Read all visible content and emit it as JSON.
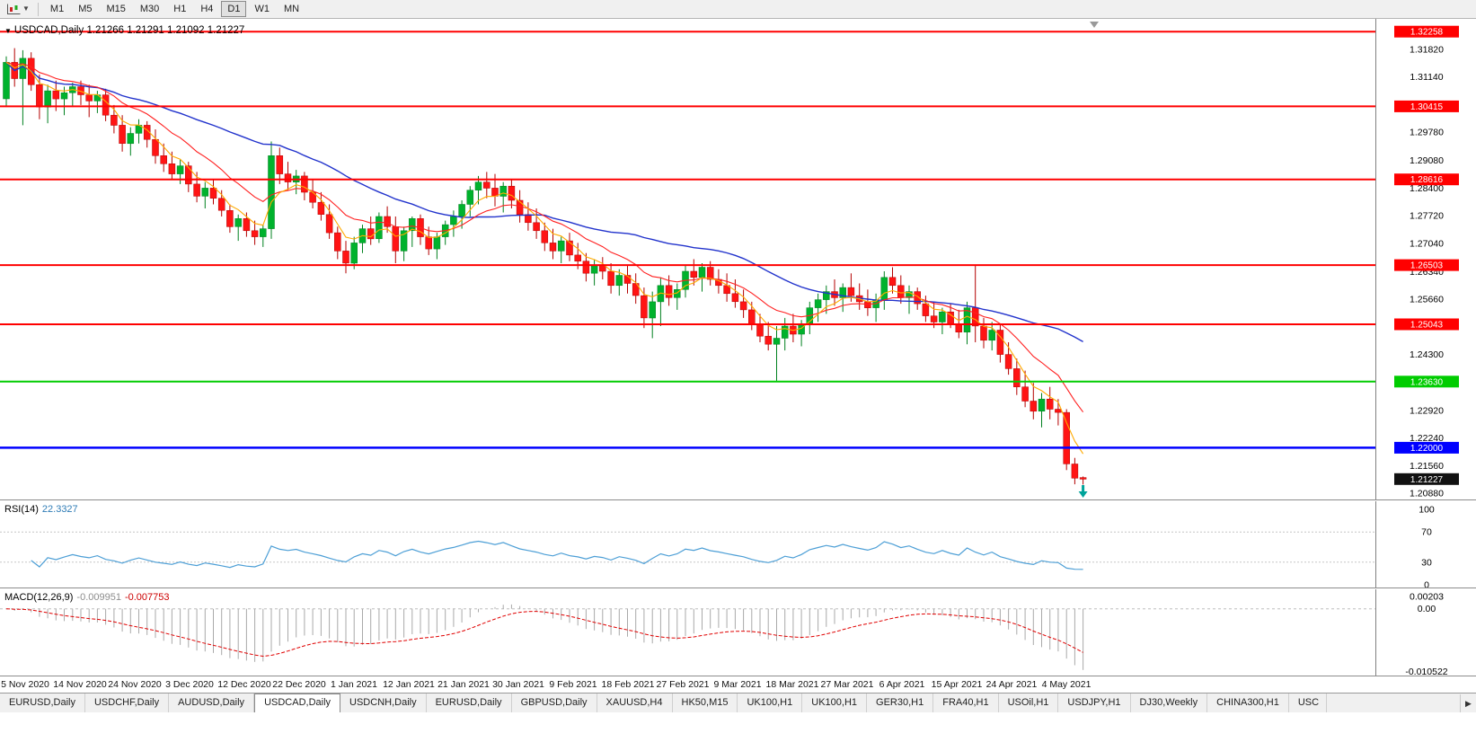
{
  "toolbar": {
    "timeframes": [
      "M1",
      "M5",
      "M15",
      "M30",
      "H1",
      "H4",
      "D1",
      "W1",
      "MN"
    ],
    "active": "D1"
  },
  "chart": {
    "title": "USDCAD,Daily",
    "ohlc": "1.21266 1.21291 1.21092 1.21227"
  },
  "price_axis": {
    "ticks": [
      "1.31820",
      "1.31140",
      "1.30460",
      "1.29780",
      "1.29080",
      "1.28400",
      "1.27720",
      "1.27040",
      "1.26340",
      "1.25660",
      "1.24980",
      "1.24300",
      "1.23620",
      "1.22920",
      "1.22240",
      "1.21560",
      "1.20880"
    ]
  },
  "date_axis": {
    "labels": [
      "5 Nov 2020",
      "14 Nov 2020",
      "24 Nov 2020",
      "3 Dec 2020",
      "12 Dec 2020",
      "22 Dec 2020",
      "1 Jan 2021",
      "12 Jan 2021",
      "21 Jan 2021",
      "30 Jan 2021",
      "9 Feb 2021",
      "18 Feb 2021",
      "27 Feb 2021",
      "9 Mar 2021",
      "18 Mar 2021",
      "27 Mar 2021",
      "6 Apr 2021",
      "15 Apr 2021",
      "24 Apr 2021",
      "4 May 2021"
    ]
  },
  "rsi": {
    "title": "RSI(14)",
    "value": "22.3327",
    "levels": [
      "100",
      "70",
      "30",
      "0"
    ],
    "color": "#4d9fd6"
  },
  "macd": {
    "title": "MACD(12,26,9)",
    "main": "-0.009951",
    "signal": "-0.007753",
    "axis_top": "0.00203",
    "axis_zero": "0.00",
    "axis_bottom": "-0.010522",
    "hist_color": "#a9a9a9",
    "signal_color": "#e00000"
  },
  "tabs": {
    "active_index": 3,
    "items": [
      "EURUSD,Daily",
      "USDCHF,Daily",
      "AUDUSD,Daily",
      "USDCAD,Daily",
      "USDCNH,Daily",
      "EURUSD,Daily",
      "GBPUSD,Daily",
      "XAUUSD,H4",
      "HK50,M15",
      "UK100,H1",
      "UK100,H1",
      "GER30,H1",
      "FRA40,H1",
      "USOil,H1",
      "USDJPY,H1",
      "DJ30,Weekly",
      "CHINA300,H1",
      "USC"
    ],
    "scroll_right_icon": "▶"
  },
  "current_price_badge": "1.21227",
  "chart_data": {
    "type": "candlestick",
    "symbol": "USDCAD",
    "timeframe": "Daily",
    "title": "USDCAD,Daily",
    "current": {
      "open": 1.21266,
      "high": 1.21291,
      "low": 1.21092,
      "close": 1.21227
    },
    "colors": {
      "up": "#00b22d",
      "up_dark": "#00801f",
      "down": "#ff1414",
      "down_dark": "#b30000",
      "ma_fast": "#ffaa00",
      "ma_mid": "#ff2020",
      "ma_slow": "#2233cc",
      "arrow": "#00a39a"
    },
    "hlines": [
      {
        "price": 1.32258,
        "color": "#ff0000",
        "width": 2,
        "badge": "1.32258",
        "name": "resistance-line-132258"
      },
      {
        "price": 1.30415,
        "color": "#ff0000",
        "width": 2,
        "badge": "1.30415",
        "name": "resistance-line-130415"
      },
      {
        "price": 1.28616,
        "color": "#ff0000",
        "width": 2,
        "badge": "1.28616",
        "name": "resistance-line-128616"
      },
      {
        "price": 1.26503,
        "color": "#ff0000",
        "width": 2,
        "badge": "1.26503",
        "name": "resistance-line-126503"
      },
      {
        "price": 1.25043,
        "color": "#ff0000",
        "width": 2,
        "badge": "1.25043",
        "name": "resistance-line-125043"
      },
      {
        "price": 1.2363,
        "color": "#00cc00",
        "width": 2,
        "badge": "1.23630",
        "name": "support-line-green"
      },
      {
        "price": 1.22,
        "color": "#0000ff",
        "width": 2.5,
        "badge": "1.22000",
        "name": "support-line-blue"
      }
    ],
    "candles": [
      [
        1.306,
        1.3165,
        1.304,
        1.315
      ],
      [
        1.315,
        1.3185,
        1.309,
        1.311
      ],
      [
        1.311,
        1.318,
        1.2995,
        1.316
      ],
      [
        1.316,
        1.3175,
        1.308,
        1.3095
      ],
      [
        1.3095,
        1.312,
        1.301,
        1.304
      ],
      [
        1.304,
        1.3095,
        1.3,
        1.308
      ],
      [
        1.308,
        1.3105,
        1.303,
        1.306
      ],
      [
        1.306,
        1.309,
        1.302,
        1.3075
      ],
      [
        1.3075,
        1.31,
        1.304,
        1.309
      ],
      [
        1.309,
        1.3105,
        1.3045,
        1.307
      ],
      [
        1.307,
        1.3095,
        1.3015,
        1.3055
      ],
      [
        1.3055,
        1.308,
        1.3025,
        1.307
      ],
      [
        1.307,
        1.3085,
        1.3005,
        1.302
      ],
      [
        1.302,
        1.3045,
        1.2975,
        1.2995
      ],
      [
        1.2995,
        1.302,
        1.293,
        1.295
      ],
      [
        1.295,
        1.299,
        1.292,
        1.2975
      ],
      [
        1.2975,
        1.301,
        1.295,
        1.2995
      ],
      [
        1.2995,
        1.3005,
        1.294,
        1.296
      ],
      [
        1.296,
        1.2985,
        1.29,
        1.292
      ],
      [
        1.292,
        1.295,
        1.288,
        1.29
      ],
      [
        1.29,
        1.293,
        1.286,
        1.2875
      ],
      [
        1.2875,
        1.291,
        1.285,
        1.2895
      ],
      [
        1.2895,
        1.2905,
        1.283,
        1.285
      ],
      [
        1.285,
        1.288,
        1.2805,
        1.282
      ],
      [
        1.282,
        1.2855,
        1.279,
        1.284
      ],
      [
        1.284,
        1.286,
        1.28,
        1.2815
      ],
      [
        1.2815,
        1.2835,
        1.277,
        1.2785
      ],
      [
        1.2785,
        1.28,
        1.273,
        1.2745
      ],
      [
        1.2745,
        1.2775,
        1.271,
        1.2765
      ],
      [
        1.2765,
        1.278,
        1.272,
        1.2735
      ],
      [
        1.2735,
        1.276,
        1.27,
        1.272
      ],
      [
        1.272,
        1.275,
        1.2695,
        1.274
      ],
      [
        1.274,
        1.2955,
        1.2715,
        1.292
      ],
      [
        1.292,
        1.294,
        1.285,
        1.2875
      ],
      [
        1.2875,
        1.2905,
        1.2835,
        1.2855
      ],
      [
        1.2855,
        1.2885,
        1.2825,
        1.287
      ],
      [
        1.287,
        1.288,
        1.281,
        1.283
      ],
      [
        1.283,
        1.286,
        1.279,
        1.2805
      ],
      [
        1.2805,
        1.283,
        1.276,
        1.2775
      ],
      [
        1.2775,
        1.28,
        1.2715,
        1.273
      ],
      [
        1.273,
        1.2745,
        1.2665,
        1.2685
      ],
      [
        1.2685,
        1.271,
        1.263,
        1.2655
      ],
      [
        1.2655,
        1.272,
        1.264,
        1.2705
      ],
      [
        1.2705,
        1.275,
        1.268,
        1.274
      ],
      [
        1.274,
        1.277,
        1.27,
        1.2715
      ],
      [
        1.2715,
        1.278,
        1.2705,
        1.277
      ],
      [
        1.277,
        1.2795,
        1.273,
        1.2745
      ],
      [
        1.2745,
        1.277,
        1.2655,
        1.2685
      ],
      [
        1.2685,
        1.2745,
        1.266,
        1.2735
      ],
      [
        1.2735,
        1.277,
        1.2695,
        1.2765
      ],
      [
        1.2765,
        1.2775,
        1.27,
        1.272
      ],
      [
        1.272,
        1.2745,
        1.2675,
        1.269
      ],
      [
        1.269,
        1.273,
        1.2665,
        1.272
      ],
      [
        1.272,
        1.276,
        1.27,
        1.275
      ],
      [
        1.275,
        1.2785,
        1.272,
        1.277
      ],
      [
        1.277,
        1.281,
        1.274,
        1.28
      ],
      [
        1.28,
        1.2845,
        1.277,
        1.2835
      ],
      [
        1.2835,
        1.287,
        1.28,
        1.2855
      ],
      [
        1.2855,
        1.288,
        1.2815,
        1.284
      ],
      [
        1.284,
        1.2875,
        1.2795,
        1.282
      ],
      [
        1.282,
        1.2855,
        1.278,
        1.2845
      ],
      [
        1.2845,
        1.286,
        1.279,
        1.281
      ],
      [
        1.281,
        1.2835,
        1.2755,
        1.2775
      ],
      [
        1.2775,
        1.2805,
        1.2735,
        1.2755
      ],
      [
        1.2755,
        1.279,
        1.2715,
        1.2735
      ],
      [
        1.2735,
        1.2755,
        1.2685,
        1.2705
      ],
      [
        1.2705,
        1.274,
        1.2665,
        1.2685
      ],
      [
        1.2685,
        1.272,
        1.2655,
        1.271
      ],
      [
        1.271,
        1.273,
        1.266,
        1.2675
      ],
      [
        1.2675,
        1.2705,
        1.264,
        1.266
      ],
      [
        1.266,
        1.268,
        1.261,
        1.263
      ],
      [
        1.263,
        1.2665,
        1.26,
        1.265
      ],
      [
        1.265,
        1.267,
        1.2615,
        1.2635
      ],
      [
        1.2635,
        1.2655,
        1.258,
        1.26
      ],
      [
        1.26,
        1.264,
        1.2575,
        1.2625
      ],
      [
        1.2625,
        1.265,
        1.258,
        1.2605
      ],
      [
        1.2605,
        1.263,
        1.2555,
        1.2575
      ],
      [
        1.2575,
        1.2595,
        1.2495,
        1.252
      ],
      [
        1.252,
        1.2585,
        1.247,
        1.256
      ],
      [
        1.256,
        1.262,
        1.25,
        1.26
      ],
      [
        1.26,
        1.2625,
        1.255,
        1.257
      ],
      [
        1.257,
        1.2605,
        1.254,
        1.259
      ],
      [
        1.259,
        1.265,
        1.257,
        1.2635
      ],
      [
        1.2635,
        1.2665,
        1.26,
        1.262
      ],
      [
        1.262,
        1.2655,
        1.2585,
        1.2645
      ],
      [
        1.2645,
        1.266,
        1.26,
        1.2615
      ],
      [
        1.2615,
        1.264,
        1.258,
        1.26
      ],
      [
        1.26,
        1.263,
        1.256,
        1.258
      ],
      [
        1.258,
        1.2615,
        1.2545,
        1.256
      ],
      [
        1.256,
        1.259,
        1.252,
        1.254
      ],
      [
        1.254,
        1.256,
        1.249,
        1.2505
      ],
      [
        1.2505,
        1.253,
        1.246,
        1.2475
      ],
      [
        1.2475,
        1.251,
        1.244,
        1.2455
      ],
      [
        1.2455,
        1.25,
        1.2365,
        1.247
      ],
      [
        1.247,
        1.252,
        1.244,
        1.25
      ],
      [
        1.25,
        1.253,
        1.246,
        1.248
      ],
      [
        1.248,
        1.2515,
        1.245,
        1.2505
      ],
      [
        1.2505,
        1.256,
        1.248,
        1.2545
      ],
      [
        1.2545,
        1.258,
        1.251,
        1.2565
      ],
      [
        1.2565,
        1.26,
        1.253,
        1.2585
      ],
      [
        1.2585,
        1.2615,
        1.255,
        1.257
      ],
      [
        1.257,
        1.2605,
        1.2535,
        1.2595
      ],
      [
        1.2595,
        1.263,
        1.256,
        1.2575
      ],
      [
        1.2575,
        1.2605,
        1.254,
        1.256
      ],
      [
        1.256,
        1.259,
        1.2525,
        1.2545
      ],
      [
        1.2545,
        1.258,
        1.251,
        1.2565
      ],
      [
        1.2565,
        1.2635,
        1.254,
        1.262
      ],
      [
        1.262,
        1.2645,
        1.258,
        1.26
      ],
      [
        1.26,
        1.2625,
        1.2555,
        1.257
      ],
      [
        1.257,
        1.26,
        1.253,
        1.2585
      ],
      [
        1.2585,
        1.2595,
        1.254,
        1.2555
      ],
      [
        1.2555,
        1.2575,
        1.251,
        1.2525
      ],
      [
        1.2525,
        1.256,
        1.2495,
        1.251
      ],
      [
        1.251,
        1.2545,
        1.248,
        1.2535
      ],
      [
        1.2535,
        1.2555,
        1.2495,
        1.2505
      ],
      [
        1.2505,
        1.254,
        1.247,
        1.2485
      ],
      [
        1.2485,
        1.256,
        1.2455,
        1.2545
      ],
      [
        1.2545,
        1.265,
        1.246,
        1.25
      ],
      [
        1.25,
        1.252,
        1.2445,
        1.2465
      ],
      [
        1.2465,
        1.251,
        1.244,
        1.249
      ],
      [
        1.249,
        1.2505,
        1.241,
        1.243
      ],
      [
        1.243,
        1.246,
        1.238,
        1.2395
      ],
      [
        1.2395,
        1.242,
        1.233,
        1.235
      ],
      [
        1.235,
        1.239,
        1.23,
        1.2315
      ],
      [
        1.2315,
        1.236,
        1.227,
        1.229
      ],
      [
        1.229,
        1.2335,
        1.225,
        1.232
      ],
      [
        1.232,
        1.235,
        1.227,
        1.2295
      ],
      [
        1.2295,
        1.232,
        1.2255,
        1.2287
      ],
      [
        1.2287,
        1.2295,
        1.2145,
        1.216
      ],
      [
        1.216,
        1.2175,
        1.211,
        1.2125
      ],
      [
        1.21266,
        1.21291,
        1.21092,
        1.21227
      ]
    ]
  }
}
